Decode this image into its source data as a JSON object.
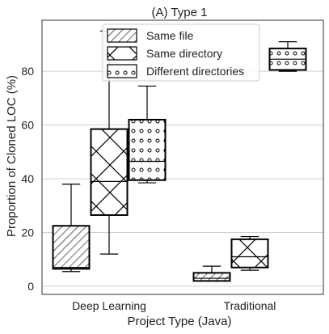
{
  "chart_data": {
    "type": "box",
    "title": "(A) Type 1",
    "xlabel": "Project Type (Java)",
    "ylabel": "Proportion of Cloned LOC (%)",
    "categories": [
      "Deep Learning",
      "Traditional"
    ],
    "ylim": [
      -3,
      99
    ],
    "yticks": [
      0,
      20,
      40,
      60,
      80
    ],
    "grid": "horizontal",
    "legend_position": "top-center",
    "series": [
      {
        "name": "Same file",
        "pattern": "diagonal-hatch",
        "boxes": [
          {
            "min": 5.5,
            "q1": 6.5,
            "median": 7.0,
            "q3": 22.5,
            "max": 38.0
          },
          {
            "min": 2.0,
            "q1": 2.0,
            "median": 3.0,
            "q3": 5.0,
            "max": 7.5
          }
        ]
      },
      {
        "name": "Same directory",
        "pattern": "cross-hatch",
        "boxes": [
          {
            "min": 12.0,
            "q1": 26.5,
            "median": 39.0,
            "q3": 58.5,
            "max": 95.0
          },
          {
            "min": 6.0,
            "q1": 7.0,
            "median": 11.0,
            "q3": 17.5,
            "max": 18.5
          }
        ]
      },
      {
        "name": "Different directories",
        "pattern": "circles",
        "boxes": [
          {
            "min": 38.5,
            "q1": 39.5,
            "median": 46.5,
            "q3": 62.0,
            "max": 74.5
          },
          {
            "min": 80.0,
            "q1": 80.5,
            "median": 84.5,
            "q3": 88.5,
            "max": 91.0
          }
        ]
      }
    ]
  }
}
